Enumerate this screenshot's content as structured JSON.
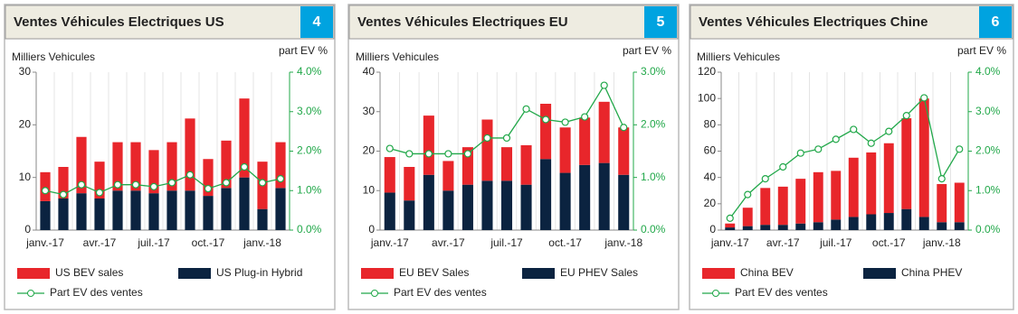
{
  "chart_data": [
    {
      "type": "bar",
      "title": "Ventes Véhicules Electriques US",
      "panel_number": "4",
      "y_label": "Milliers Vehicules",
      "y2_label": "part EV %",
      "categories": [
        "janv.-17",
        null,
        null,
        "avr.-17",
        null,
        null,
        "juil.-17",
        null,
        null,
        "oct.-17",
        null,
        null,
        "janv.-18",
        null
      ],
      "series": [
        {
          "name": "US Plug-in Hybrid",
          "color": "#0b2340",
          "values": [
            5.5,
            6,
            7,
            6,
            7.5,
            7.5,
            7,
            7.5,
            7.5,
            6.5,
            8,
            10,
            4,
            8
          ]
        },
        {
          "name": "US BEV sales",
          "color": "#e8262b",
          "values": [
            5.5,
            6,
            10.7,
            7,
            9.2,
            9.2,
            8.2,
            9.2,
            13.7,
            7,
            9,
            15,
            9,
            8.7
          ]
        },
        {
          "name": "Part EV des ventes",
          "color": "#22a84a",
          "type": "line",
          "axis": "y2",
          "values": [
            1.0,
            0.9,
            1.15,
            0.95,
            1.15,
            1.15,
            1.1,
            1.2,
            1.4,
            1.05,
            1.2,
            1.6,
            1.2,
            1.3
          ]
        }
      ],
      "ylim": [
        0,
        30
      ],
      "yticks": [
        0,
        10,
        20,
        30
      ],
      "y2lim": [
        0,
        4
      ],
      "y2ticks": [
        {
          "value": 0,
          "label": "0.0%"
        },
        {
          "value": 1,
          "label": "1.0%"
        },
        {
          "value": 2,
          "label": "2.0%"
        },
        {
          "value": 3,
          "label": "3.0%"
        },
        {
          "value": 4,
          "label": "4.0%"
        }
      ],
      "legend_order": [
        1,
        0,
        2
      ]
    },
    {
      "type": "bar",
      "title": "Ventes Véhicules Electriques EU",
      "panel_number": "5",
      "y_label": "Milliers Vehicules",
      "y2_label": "part EV %",
      "categories": [
        "janv.-17",
        null,
        null,
        "avr.-17",
        null,
        null,
        "juil.-17",
        null,
        null,
        "oct.-17",
        null,
        null,
        "janv.-18"
      ],
      "series": [
        {
          "name": "EU PHEV Sales",
          "color": "#0b2340",
          "values": [
            9.5,
            7.5,
            14,
            10,
            11.5,
            12.5,
            12.5,
            11.5,
            18,
            14.5,
            16.5,
            17,
            14
          ]
        },
        {
          "name": "EU BEV Sales",
          "color": "#e8262b",
          "values": [
            9,
            8.5,
            15,
            7.5,
            9.5,
            15.5,
            8.5,
            10,
            14,
            11.5,
            12,
            15.5,
            12
          ]
        },
        {
          "name": "Part EV des ventes",
          "color": "#22a84a",
          "type": "line",
          "axis": "y2",
          "values": [
            1.55,
            1.45,
            1.45,
            1.45,
            1.45,
            1.75,
            1.75,
            2.3,
            2.1,
            2.05,
            2.15,
            2.75,
            1.95
          ]
        }
      ],
      "ylim": [
        0,
        40
      ],
      "yticks": [
        0,
        10,
        20,
        30,
        40
      ],
      "y2lim": [
        0,
        3
      ],
      "y2ticks": [
        {
          "value": 0,
          "label": "0.0%"
        },
        {
          "value": 1,
          "label": "1.0%"
        },
        {
          "value": 2,
          "label": "2.0%"
        },
        {
          "value": 3,
          "label": "3.0%"
        }
      ],
      "legend_order": [
        1,
        0,
        2
      ]
    },
    {
      "type": "bar",
      "title": "Ventes Véhicules Electriques Chine",
      "panel_number": "6",
      "y_label": "Milliers Vehicules",
      "y2_label": "part EV %",
      "categories": [
        "janv.-17",
        null,
        null,
        "avr.-17",
        null,
        null,
        "juil.-17",
        null,
        null,
        "oct.-17",
        null,
        null,
        "janv.-18",
        null
      ],
      "series": [
        {
          "name": "China PHEV",
          "color": "#0b2340",
          "values": [
            2,
            3,
            4,
            4,
            5,
            6,
            8,
            10,
            12,
            13,
            16,
            10,
            6,
            6
          ]
        },
        {
          "name": "China BEV",
          "color": "#e8262b",
          "values": [
            3,
            14,
            28,
            29,
            34,
            38,
            37,
            45,
            47,
            53,
            69,
            90,
            29,
            30
          ]
        },
        {
          "name": "Part EV des ventes",
          "color": "#22a84a",
          "type": "line",
          "axis": "y2",
          "values": [
            0.3,
            0.9,
            1.3,
            1.6,
            1.95,
            2.05,
            2.3,
            2.55,
            2.2,
            2.5,
            2.9,
            3.35,
            1.3,
            2.05
          ]
        }
      ],
      "ylim": [
        0,
        120
      ],
      "yticks": [
        0,
        20,
        40,
        60,
        80,
        100,
        120
      ],
      "y2lim": [
        0,
        4
      ],
      "y2ticks": [
        {
          "value": 0,
          "label": "0.0%"
        },
        {
          "value": 1,
          "label": "1.0%"
        },
        {
          "value": 2,
          "label": "2.0%"
        },
        {
          "value": 3,
          "label": "3.0%"
        },
        {
          "value": 4,
          "label": "4.0%"
        }
      ],
      "legend_order": [
        1,
        0,
        2
      ]
    }
  ]
}
